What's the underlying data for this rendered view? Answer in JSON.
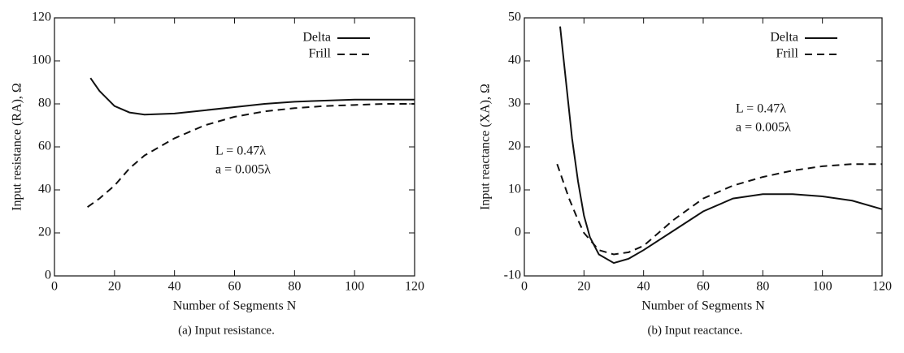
{
  "chart_data": [
    {
      "type": "line",
      "title": null,
      "caption": "(a) Input resistance.",
      "xlabel": "Number of Segments N",
      "ylabel": "Input resistance (RA), Ω",
      "xlim": [
        0,
        120
      ],
      "ylim": [
        0,
        120
      ],
      "xticks": [
        0,
        20,
        40,
        60,
        80,
        100,
        120
      ],
      "yticks": [
        0,
        20,
        40,
        60,
        80,
        100,
        120
      ],
      "legend": "upper right",
      "annotations": [
        "L = 0.47λ",
        "a = 0.005λ"
      ],
      "series": [
        {
          "name": "Delta",
          "color": "#111111",
          "linestyle": "solid",
          "x": [
            12,
            15,
            20,
            25,
            30,
            40,
            50,
            60,
            70,
            80,
            90,
            100,
            110,
            120
          ],
          "values": [
            92,
            86,
            79,
            76,
            75,
            75.5,
            77,
            78.5,
            80,
            81,
            81.5,
            82,
            82,
            82
          ]
        },
        {
          "name": "Frill",
          "color": "#111111",
          "linestyle": "dashed",
          "x": [
            11,
            15,
            20,
            25,
            30,
            40,
            50,
            60,
            70,
            80,
            90,
            100,
            110,
            120
          ],
          "values": [
            32,
            36,
            42,
            50,
            56,
            64,
            70,
            74,
            76.5,
            78,
            79,
            79.5,
            80,
            80
          ]
        }
      ]
    },
    {
      "type": "line",
      "title": null,
      "caption": "(b) Input reactance.",
      "xlabel": "Number of Segments N",
      "ylabel": "Input reactance (XA), Ω",
      "xlim": [
        0,
        120
      ],
      "ylim": [
        -10,
        50
      ],
      "xticks": [
        0,
        20,
        40,
        60,
        80,
        100,
        120
      ],
      "yticks": [
        -10,
        0,
        10,
        20,
        30,
        40,
        50
      ],
      "legend": "upper right",
      "annotations": [
        "L = 0.47λ",
        "a = 0.005λ"
      ],
      "series": [
        {
          "name": "Delta",
          "color": "#111111",
          "linestyle": "solid",
          "x": [
            12,
            14,
            16,
            18,
            20,
            22,
            25,
            30,
            35,
            40,
            50,
            60,
            70,
            80,
            90,
            100,
            110,
            120
          ],
          "values": [
            48,
            35,
            22,
            12,
            4,
            -1,
            -5,
            -7,
            -6,
            -4,
            0.5,
            5,
            8,
            9,
            9,
            8.5,
            7.5,
            5.5
          ]
        },
        {
          "name": "Frill",
          "color": "#111111",
          "linestyle": "dashed",
          "x": [
            11,
            13,
            15,
            18,
            20,
            25,
            30,
            35,
            40,
            50,
            60,
            70,
            80,
            90,
            100,
            110,
            120
          ],
          "values": [
            16,
            12,
            8,
            3,
            0,
            -4,
            -5,
            -4.5,
            -3,
            3,
            8,
            11,
            13,
            14.5,
            15.5,
            16,
            16
          ]
        }
      ]
    }
  ]
}
